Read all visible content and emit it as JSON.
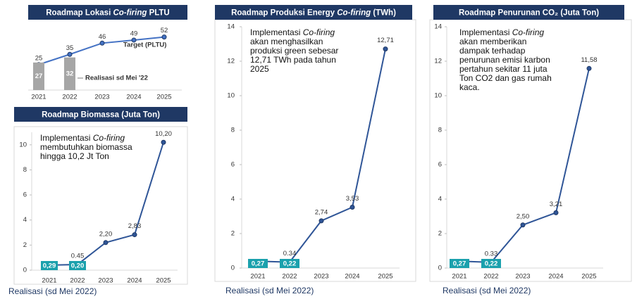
{
  "chart_data": [
    {
      "type": "line",
      "title": [
        "Roadmap Lokasi  ",
        "Co-firing",
        " PLTU"
      ],
      "categories": [
        "2021",
        "2022",
        "2023",
        "2024",
        "2025"
      ],
      "series": [
        {
          "name": "Target (PLTU)",
          "type": "line",
          "color": "#4472c4",
          "values": [
            25,
            35,
            46,
            49,
            52
          ]
        },
        {
          "name": "Realisasi sd Mei '22",
          "type": "bar",
          "color": "#a6a6a6",
          "values": [
            27,
            32,
            null,
            null,
            null
          ]
        }
      ]
    },
    {
      "type": "line",
      "title": [
        "Roadmap Biomassa (Juta Ton)"
      ],
      "annotation": [
        "Implementasi ",
        "Co-firing",
        "membutuhkan biomassa",
        "hingga 10,2 Jt Ton"
      ],
      "categories": [
        "2021",
        "2022",
        "2023",
        "2024",
        "2025"
      ],
      "ylim": [
        0,
        11
      ],
      "yticks": [
        0,
        2,
        4,
        6,
        8,
        10
      ],
      "series": [
        {
          "type": "line",
          "color": "#2f5597",
          "values": [
            0.4,
            0.45,
            2.2,
            2.83,
            10.2
          ],
          "value_labels": [
            null,
            "0.45",
            "2,20",
            "2,83",
            "10,20"
          ]
        },
        {
          "name": "Realisasi (sd Mei 2022)",
          "type": "tag",
          "color": "#1ba1ad",
          "values": [
            0.29,
            0.2,
            null,
            null,
            null
          ],
          "value_labels": [
            "0,29",
            "0,20",
            null,
            null,
            null
          ]
        }
      ]
    },
    {
      "type": "line",
      "title": [
        "Roadmap Produksi Energy ",
        "Co-firing",
        " (TWh)"
      ],
      "annotation": [
        "Implementasi ",
        "Co-firing",
        "akan menghasilkan",
        "produksi green sebesar",
        "12,71 TWh pada tahun",
        "2025"
      ],
      "categories": [
        "2021",
        "2022",
        "2023",
        "2024",
        "2025"
      ],
      "ylim": [
        0,
        14
      ],
      "yticks": [
        0,
        2,
        4,
        6,
        8,
        10,
        12,
        14
      ],
      "series": [
        {
          "type": "line",
          "color": "#2f5597",
          "values": [
            0.4,
            0.34,
            2.74,
            3.53,
            12.71
          ],
          "value_labels": [
            null,
            "0.34",
            "2,74",
            "3,53",
            "12,71"
          ]
        },
        {
          "name": "Realisasi (sd Mei 2022)",
          "type": "tag",
          "color": "#1ba1ad",
          "values": [
            0.27,
            0.22,
            null,
            null,
            null
          ],
          "value_labels": [
            "0,27",
            "0,22",
            null,
            null,
            null
          ]
        }
      ]
    },
    {
      "type": "line",
      "title": [
        "Roadmap Penurunan CO₂ (Juta Ton)"
      ],
      "annotation": [
        "Implementasi ",
        "Co-firing",
        "akan memberikan",
        "dampak terhadap",
        "penurunan emisi karbon",
        "pertahun sekitar 11  juta",
        "Ton CO2 dan gas rumah",
        "kaca."
      ],
      "categories": [
        "2021",
        "2022",
        "2023",
        "2024",
        "2025"
      ],
      "ylim": [
        0,
        14
      ],
      "yticks": [
        0,
        2,
        4,
        6,
        8,
        10,
        12,
        14
      ],
      "series": [
        {
          "type": "line",
          "color": "#2f5597",
          "values": [
            0.4,
            0.33,
            2.5,
            3.21,
            11.58
          ],
          "value_labels": [
            null,
            "0.33",
            "2,50",
            "3,21",
            "11,58"
          ]
        },
        {
          "name": "Realisasi (sd Mei 2022)",
          "type": "tag",
          "color": "#1ba1ad",
          "values": [
            0.27,
            0.22,
            null,
            null,
            null
          ],
          "value_labels": [
            "0,27",
            "0,22",
            null,
            null,
            null
          ]
        }
      ]
    }
  ]
}
